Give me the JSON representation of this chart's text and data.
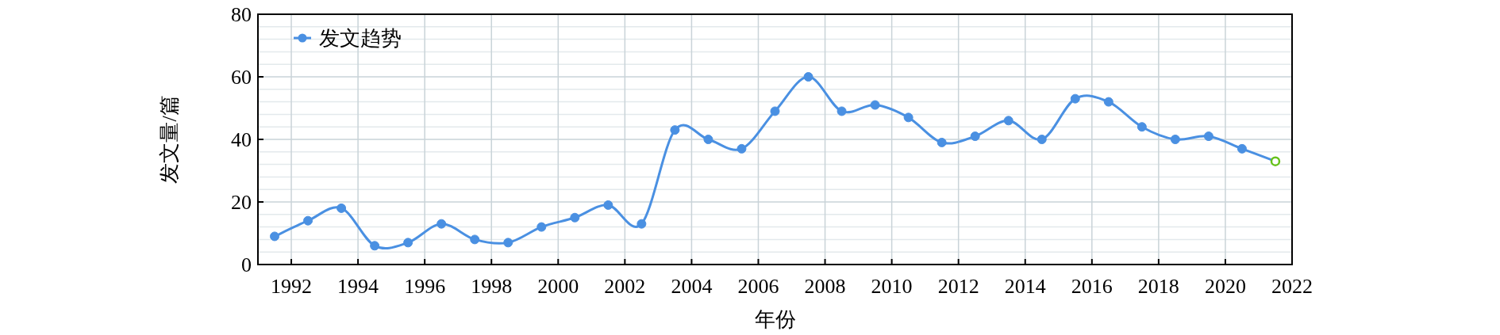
{
  "chart_data": {
    "type": "line",
    "xlabel": "年份",
    "ylabel": "发文量/篇",
    "x": [
      1991.5,
      1992.5,
      1993.5,
      1994.5,
      1995.5,
      1996.5,
      1997.5,
      1998.5,
      1999.5,
      2000.5,
      2001.5,
      2002.5,
      2003.5,
      2004.5,
      2005.5,
      2006.5,
      2007.5,
      2008.5,
      2009.5,
      2010.5,
      2011.5,
      2012.5,
      2013.5,
      2014.5,
      2015.5,
      2016.5,
      2017.5,
      2018.5,
      2019.5,
      2020.5,
      2021.5
    ],
    "series": [
      {
        "name": "发文趋势",
        "color": "#4a90e2",
        "values": [
          9,
          14,
          18,
          6,
          7,
          13,
          8,
          7,
          12,
          15,
          19,
          13,
          43,
          40,
          37,
          49,
          60,
          49,
          51,
          47,
          39,
          41,
          46,
          40,
          53,
          52,
          44,
          40,
          41,
          37,
          33
        ],
        "colors": [
          "#4a90e2",
          "#4a90e2",
          "#4a90e2",
          "#4a90e2",
          "#4a90e2",
          "#4a90e2",
          "#4a90e2",
          "#4a90e2",
          "#4a90e2",
          "#4a90e2",
          "#4a90e2",
          "#4a90e2",
          "#4a90e2",
          "#4a90e2",
          "#4a90e2",
          "#4a90e2",
          "#4a90e2",
          "#4a90e2",
          "#4a90e2",
          "#4a90e2",
          "#4a90e2",
          "#4a90e2",
          "#4a90e2",
          "#4a90e2",
          "#4a90e2",
          "#4a90e2",
          "#4a90e2",
          "#4a90e2",
          "#4a90e2",
          "#4a90e2",
          "#66c21a"
        ]
      }
    ],
    "xlim": [
      1991,
      2022
    ],
    "xticks": [
      1992,
      1994,
      1996,
      1998,
      2000,
      2002,
      2004,
      2006,
      2008,
      2010,
      2012,
      2014,
      2016,
      2018,
      2020,
      2022
    ],
    "ylim": [
      0,
      80
    ],
    "yticks": [
      0,
      20,
      40,
      60,
      80
    ],
    "grid": true,
    "legend": "top left",
    "marker": "circle",
    "line_style": "solid"
  }
}
